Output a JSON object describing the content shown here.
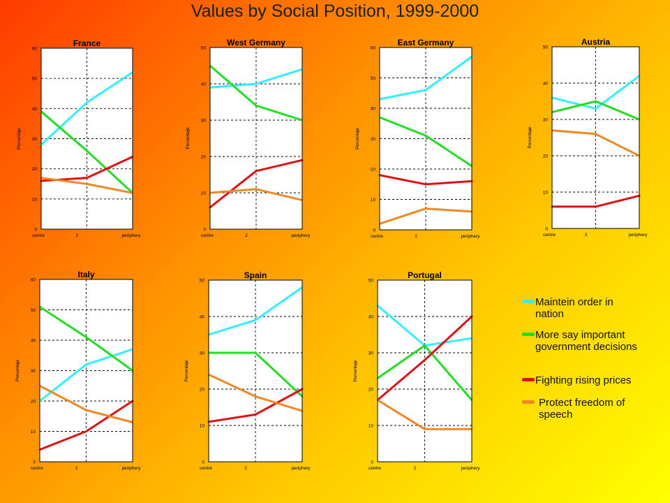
{
  "title": "Values by Social Position, 1999-2000",
  "series_colors": {
    "order": "#33eeff",
    "say": "#22dd22",
    "prices": "#dd1111",
    "speech": "#ee8822"
  },
  "legend": [
    {
      "key": "order",
      "label": "Maintein order in nation"
    },
    {
      "key": "say",
      "label": "More say important government decisions"
    },
    {
      "key": "prices",
      "label": "Fighting rising prices"
    },
    {
      "key": "speech",
      "label": "Protect freedom of speech"
    }
  ],
  "chart_data": [
    {
      "type": "line",
      "title": "France",
      "ylabel": "Porcentaje",
      "ylim": [
        0,
        60
      ],
      "yticks": [
        0,
        10,
        20,
        30,
        40,
        50,
        60
      ],
      "categories": [
        "centre",
        "2",
        "periphery"
      ],
      "series": [
        {
          "name": "Maintein order in nation",
          "key": "order",
          "values": [
            28,
            42,
            52
          ]
        },
        {
          "name": "More say important government decisions",
          "key": "say",
          "values": [
            39,
            26,
            12
          ]
        },
        {
          "name": "Fighting rising prices",
          "key": "prices",
          "values": [
            16,
            17,
            24
          ]
        },
        {
          "name": "Protect freedom of speech",
          "key": "speech",
          "values": [
            17,
            15,
            12
          ]
        }
      ]
    },
    {
      "type": "line",
      "title": "West Germany",
      "ylabel": "Porcentaje",
      "ylim": [
        0,
        50
      ],
      "yticks": [
        0,
        10,
        20,
        30,
        40,
        50
      ],
      "categories": [
        "centre",
        "2",
        "periphery"
      ],
      "series": [
        {
          "name": "Maintein order in nation",
          "key": "order",
          "values": [
            39,
            40,
            44
          ]
        },
        {
          "name": "More say important government decisions",
          "key": "say",
          "values": [
            45,
            34,
            30
          ]
        },
        {
          "name": "Fighting rising prices",
          "key": "prices",
          "values": [
            6,
            16,
            19
          ]
        },
        {
          "name": "Protect freedom of speech",
          "key": "speech",
          "values": [
            10,
            11,
            8
          ]
        }
      ]
    },
    {
      "type": "line",
      "title": "East Germany",
      "ylabel": "Porcentaje",
      "ylim": [
        0,
        60
      ],
      "yticks": [
        0,
        10,
        20,
        30,
        40,
        50,
        60
      ],
      "categories": [
        "centre",
        "2",
        "periphery"
      ],
      "series": [
        {
          "name": "Maintein order in nation",
          "key": "order",
          "values": [
            43,
            46,
            57
          ]
        },
        {
          "name": "More say important government decisions",
          "key": "say",
          "values": [
            37,
            31,
            21
          ]
        },
        {
          "name": "Fighting rising prices",
          "key": "prices",
          "values": [
            18,
            15,
            16
          ]
        },
        {
          "name": "Protect freedom of speech",
          "key": "speech",
          "values": [
            2,
            7,
            6
          ]
        }
      ]
    },
    {
      "type": "line",
      "title": "Austria",
      "ylabel": "Porcentaje",
      "ylim": [
        0,
        50
      ],
      "yticks": [
        0,
        10,
        20,
        30,
        40,
        50
      ],
      "categories": [
        "centre",
        "2",
        "periphery"
      ],
      "series": [
        {
          "name": "Maintein order in nation",
          "key": "order",
          "values": [
            36,
            33,
            42
          ]
        },
        {
          "name": "More say important government decisions",
          "key": "say",
          "values": [
            32,
            35,
            30
          ]
        },
        {
          "name": "Fighting rising prices",
          "key": "prices",
          "values": [
            6,
            6,
            9
          ]
        },
        {
          "name": "Protect freedom of speech",
          "key": "speech",
          "values": [
            27,
            26,
            20
          ]
        }
      ]
    },
    {
      "type": "line",
      "title": "Italy",
      "ylabel": "Porcentaje",
      "ylim": [
        0,
        60
      ],
      "yticks": [
        0,
        10,
        20,
        30,
        40,
        50,
        60
      ],
      "categories": [
        "centre",
        "2",
        "periphery"
      ],
      "series": [
        {
          "name": "Maintein order in nation",
          "key": "order",
          "values": [
            20,
            32,
            37
          ]
        },
        {
          "name": "More say important government decisions",
          "key": "say",
          "values": [
            51,
            41,
            30
          ]
        },
        {
          "name": "Fighting rising prices",
          "key": "prices",
          "values": [
            4,
            10,
            20
          ]
        },
        {
          "name": "Protect freedom of speech",
          "key": "speech",
          "values": [
            25,
            17,
            13
          ]
        }
      ]
    },
    {
      "type": "line",
      "title": "Spain",
      "ylabel": "Porcentaje",
      "ylim": [
        0,
        50
      ],
      "yticks": [
        0,
        10,
        20,
        30,
        40,
        50
      ],
      "categories": [
        "centre",
        "2",
        "periphery"
      ],
      "series": [
        {
          "name": "Maintein order in nation",
          "key": "order",
          "values": [
            35,
            39,
            48
          ]
        },
        {
          "name": "More say important government decisions",
          "key": "say",
          "values": [
            30,
            30,
            18
          ]
        },
        {
          "name": "Fighting rising prices",
          "key": "prices",
          "values": [
            11,
            13,
            20
          ]
        },
        {
          "name": "Protect freedom of speech",
          "key": "speech",
          "values": [
            24,
            18,
            14
          ]
        }
      ]
    },
    {
      "type": "line",
      "title": "Portugal",
      "ylabel": "Porcentaje",
      "ylim": [
        0,
        50
      ],
      "yticks": [
        0,
        10,
        20,
        30,
        40,
        50
      ],
      "categories": [
        "centre",
        "2",
        "periphery"
      ],
      "series": [
        {
          "name": "Maintein order in nation",
          "key": "order",
          "values": [
            43,
            32,
            34
          ]
        },
        {
          "name": "More say important government decisions",
          "key": "say",
          "values": [
            23,
            32,
            17
          ]
        },
        {
          "name": "Fighting rising prices",
          "key": "prices",
          "values": [
            17,
            28,
            40
          ]
        },
        {
          "name": "Protect freedom of speech",
          "key": "speech",
          "values": [
            17,
            9,
            9
          ]
        }
      ]
    }
  ]
}
